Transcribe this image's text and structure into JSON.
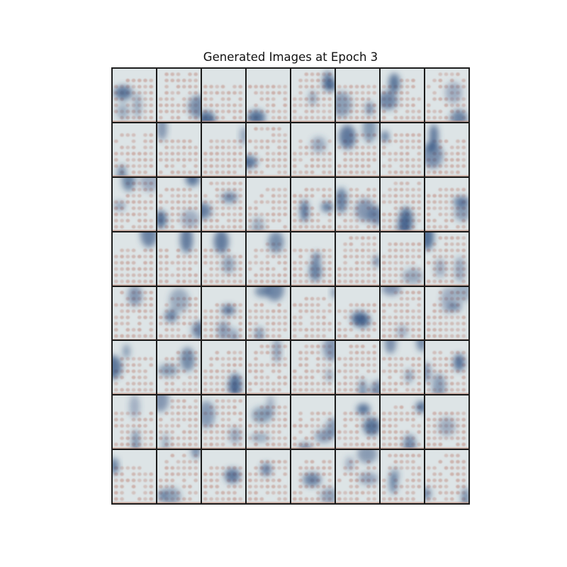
{
  "figure": {
    "title": "Generated Images at Epoch 3"
  },
  "grid": {
    "rows": 8,
    "cols": 8
  },
  "colors": {
    "background": "#dde4e6",
    "dot": "#c9a9a2",
    "blob": "#2e4f7f",
    "edge": "#c49380"
  }
}
